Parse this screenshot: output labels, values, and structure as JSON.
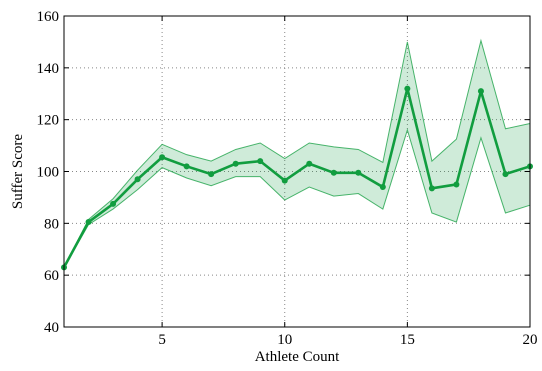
{
  "chart_data": {
    "type": "line",
    "title": "",
    "xlabel": "Athlete Count",
    "ylabel": "Suffer Score",
    "xlim": [
      1,
      20
    ],
    "ylim": [
      40,
      160
    ],
    "x_ticks": [
      5,
      10,
      15,
      20
    ],
    "y_ticks": [
      40,
      60,
      80,
      100,
      120,
      140,
      160
    ],
    "grid": true,
    "line_color": "#119d3f",
    "band_color": "#119d3f",
    "series": [
      {
        "x": [
          1,
          2,
          3,
          4,
          5,
          6,
          7,
          8,
          9,
          10,
          11,
          12,
          13,
          14,
          15,
          16,
          17,
          18,
          19,
          20
        ],
        "values": [
          63,
          80.5,
          87.5,
          97,
          105.5,
          102,
          99,
          103,
          104,
          96.5,
          103,
          99.5,
          99.5,
          94,
          132,
          93.5,
          95,
          131,
          99,
          102
        ],
        "lower": [
          63,
          79.5,
          85.5,
          93,
          101.5,
          97.5,
          94.5,
          98,
          98,
          89,
          94,
          90.5,
          91.5,
          85.5,
          116,
          84,
          80.5,
          113,
          84,
          87
        ],
        "upper": [
          63,
          81.5,
          89.5,
          100.5,
          110.5,
          106.5,
          104,
          108.5,
          111,
          105,
          111,
          109.5,
          108.5,
          103.5,
          150,
          104,
          112.5,
          150.5,
          116.5,
          118.5
        ]
      }
    ]
  }
}
